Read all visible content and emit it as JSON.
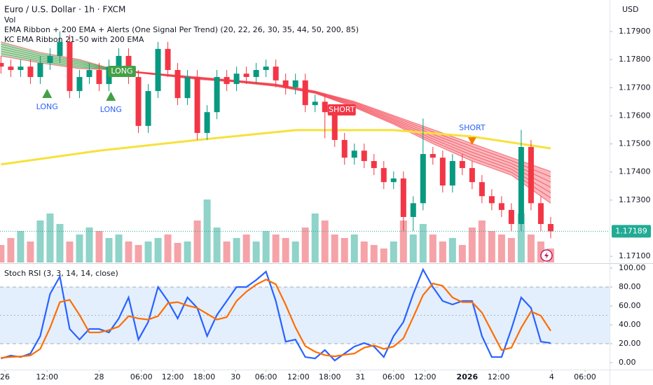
{
  "chart_data": [
    {
      "type": "candlestick",
      "title": "Euro / U.S. Dollar · 1h · FXCM",
      "indicator_labels": [
        "Vol",
        "EMA Ribbon + 200 EMA + Alerts (One Signal Per Trend) (20, 22, 26, 30, 35, 44, 50, 200, 85)",
        "KC EMA Ribbon 21–50 with 200 EMA"
      ],
      "currency": "USD",
      "xlim": [
        -0.1,
        62
      ],
      "xticks": [
        {
          "value": 0.4,
          "label": "26"
        },
        {
          "value": 4.7,
          "label": "12:00"
        },
        {
          "value": 10.0,
          "label": "28"
        },
        {
          "value": 14.3,
          "label": "06:00"
        },
        {
          "value": 17.5,
          "label": "12:00"
        },
        {
          "value": 20.7,
          "label": "18:00"
        },
        {
          "value": 23.9,
          "label": "30"
        },
        {
          "value": 27.0,
          "label": "06:00"
        },
        {
          "value": 30.3,
          "label": "12:00"
        },
        {
          "value": 33.5,
          "label": "18:00"
        },
        {
          "value": 36.6,
          "label": "31"
        },
        {
          "value": 40.0,
          "label": "06:00"
        },
        {
          "value": 43.2,
          "label": "12:00"
        },
        {
          "value": 47.5,
          "label": "2026"
        },
        {
          "value": 50.7,
          "label": "12:00"
        },
        {
          "value": 56.1,
          "label": "4"
        },
        {
          "value": 59.5,
          "label": "06:00"
        }
      ],
      "ylim": [
        1.17078,
        1.18012
      ],
      "yticks": [
        {
          "value": 1.179,
          "label": "1.17900"
        },
        {
          "value": 1.178,
          "label": "1.17800"
        },
        {
          "value": 1.177,
          "label": "1.17700"
        },
        {
          "value": 1.176,
          "label": "1.17600"
        },
        {
          "value": 1.175,
          "label": "1.17500"
        },
        {
          "value": 1.174,
          "label": "1.17400"
        },
        {
          "value": 1.173,
          "label": "1.17300"
        },
        {
          "value": 1.171,
          "label": "1.17100"
        }
      ],
      "up_color": "#089981",
      "down_color": "#f23645",
      "open": [
        1.17788,
        1.17775,
        1.17763,
        1.17775,
        1.17738,
        1.17788,
        1.17813,
        1.17863,
        1.17688,
        1.17738,
        1.17763,
        1.17713,
        1.17775,
        1.17813,
        1.17738,
        1.17564,
        1.17688,
        1.17838,
        1.17763,
        1.17663,
        1.17738,
        1.17539,
        1.17613,
        1.17738,
        1.17713,
        1.1775,
        1.17738,
        1.17763,
        1.17775,
        1.17726,
        1.17701,
        1.17726,
        1.17638,
        1.1765,
        1.17613,
        1.17514,
        1.17451,
        1.17476,
        1.17439,
        1.17414,
        1.17364,
        1.17377,
        1.1724,
        1.17289,
        1.17464,
        1.17451,
        1.17352,
        1.17439,
        1.17414,
        1.17364,
        1.17314,
        1.17289,
        1.17265,
        1.17215,
        1.17489,
        1.17289,
        1.17215
      ],
      "high": [
        1.17813,
        1.178,
        1.178,
        1.178,
        1.17813,
        1.1784,
        1.179,
        1.17888,
        1.17763,
        1.17788,
        1.17788,
        1.178,
        1.1784,
        1.1784,
        1.17763,
        1.17713,
        1.17863,
        1.17863,
        1.17788,
        1.17763,
        1.17763,
        1.17638,
        1.17763,
        1.17763,
        1.17775,
        1.17775,
        1.17788,
        1.178,
        1.178,
        1.1775,
        1.1775,
        1.1775,
        1.17675,
        1.17675,
        1.17638,
        1.17539,
        1.17501,
        1.17501,
        1.17464,
        1.17439,
        1.17402,
        1.17402,
        1.17314,
        1.1759,
        1.17489,
        1.17476,
        1.17464,
        1.17464,
        1.17439,
        1.17389,
        1.17339,
        1.17314,
        1.17289,
        1.1755,
        1.17514,
        1.17314,
        1.1724
      ],
      "low": [
        1.1775,
        1.17738,
        1.17738,
        1.17713,
        1.17713,
        1.17763,
        1.17788,
        1.17663,
        1.17663,
        1.17713,
        1.17688,
        1.17688,
        1.1775,
        1.17713,
        1.17539,
        1.17539,
        1.17663,
        1.17738,
        1.17638,
        1.17638,
        1.17514,
        1.17514,
        1.17588,
        1.17688,
        1.17688,
        1.17713,
        1.17713,
        1.17738,
        1.17701,
        1.17676,
        1.17676,
        1.17613,
        1.17613,
        1.1752,
        1.17489,
        1.17426,
        1.17426,
        1.17414,
        1.17389,
        1.17339,
        1.17339,
        1.1719,
        1.1719,
        1.17264,
        1.17426,
        1.17327,
        1.17327,
        1.17389,
        1.17339,
        1.17289,
        1.17264,
        1.1724,
        1.1719,
        1.1719,
        1.17264,
        1.1719,
        1.17164
      ],
      "close": [
        1.17775,
        1.17763,
        1.17775,
        1.17738,
        1.17788,
        1.17813,
        1.17863,
        1.17688,
        1.17738,
        1.17763,
        1.17713,
        1.17775,
        1.17813,
        1.17738,
        1.17564,
        1.17688,
        1.17838,
        1.17763,
        1.17663,
        1.17738,
        1.17539,
        1.17613,
        1.17738,
        1.17713,
        1.1775,
        1.17738,
        1.17763,
        1.17775,
        1.17726,
        1.17701,
        1.17726,
        1.17638,
        1.1765,
        1.17613,
        1.17514,
        1.17451,
        1.17476,
        1.17439,
        1.17414,
        1.17364,
        1.17377,
        1.1724,
        1.17289,
        1.17464,
        1.17451,
        1.17352,
        1.17439,
        1.17414,
        1.17364,
        1.17314,
        1.17289,
        1.17265,
        1.17215,
        1.17489,
        1.17289,
        1.17215,
        1.17189
      ],
      "volume": {
        "ylim": [
          0,
          100
        ],
        "up_color": "#8fd3c9",
        "down_color": "#f5a3a8",
        "values": [
          25,
          35,
          45,
          30,
          60,
          70,
          55,
          30,
          40,
          50,
          45,
          35,
          40,
          30,
          25,
          30,
          35,
          40,
          28,
          30,
          60,
          90,
          50,
          30,
          35,
          40,
          30,
          45,
          40,
          35,
          30,
          50,
          70,
          60,
          40,
          35,
          40,
          30,
          25,
          20,
          30,
          60,
          40,
          55,
          40,
          30,
          35,
          25,
          50,
          60,
          45,
          40,
          35,
          70,
          40,
          30,
          20
        ]
      },
      "ema200": {
        "color": "#f7e13b",
        "x": [
          0,
          10,
          20,
          30,
          40,
          48,
          56
        ],
        "values": [
          1.17427,
          1.17476,
          1.17514,
          1.17549,
          1.17549,
          1.17526,
          1.17484
        ]
      },
      "ribbon": {
        "bull_color": "#43a047",
        "bear_color": "#f23645",
        "x": [
          0,
          4,
          8,
          12,
          16,
          20,
          24,
          28,
          32,
          36,
          40,
          44,
          48,
          52,
          56
        ],
        "fast": [
          1.17863,
          1.17825,
          1.178,
          1.1776,
          1.17745,
          1.1773,
          1.1772,
          1.17705,
          1.1768,
          1.1763,
          1.1757,
          1.17501,
          1.17439,
          1.17389,
          1.17289
        ],
        "slow": [
          1.17813,
          1.17788,
          1.17768,
          1.17763,
          1.1775,
          1.17738,
          1.17726,
          1.17713,
          1.17688,
          1.17651,
          1.17601,
          1.17551,
          1.17501,
          1.17451,
          1.17402
        ]
      },
      "signals": [
        {
          "label": "LONG",
          "kind": "long-text",
          "x": 4.7,
          "price": 1.17631
        },
        {
          "label": "LONG",
          "kind": "long-text",
          "x": 11.2,
          "price": 1.17621
        },
        {
          "label": "LONG",
          "kind": "long-box",
          "x": 11.6,
          "price": 1.17758
        },
        {
          "label": "SHORT",
          "kind": "short-box",
          "x": 34,
          "price": 1.17621
        },
        {
          "label": "SHORT",
          "kind": "short-text",
          "x": 48,
          "price": 1.17556
        }
      ],
      "last_price": 1.17189,
      "last_price_color": "#22ab94"
    },
    {
      "type": "line",
      "title": "Stoch RSI (3, 3, 14, 14, close)",
      "ylim": [
        -7.4,
        103.7
      ],
      "yticks": [
        {
          "value": 100,
          "label": "100.00"
        },
        {
          "value": 80,
          "label": "80.00"
        },
        {
          "value": 60,
          "label": "60.00"
        },
        {
          "value": 40,
          "label": "40.00"
        },
        {
          "value": 20,
          "label": "20.00"
        },
        {
          "value": 0,
          "label": "0.00"
        }
      ],
      "band": [
        20,
        80
      ],
      "band_color": "#e3effd",
      "series": [
        {
          "color": "#2962ff",
          "values": [
            4.4,
            7.4,
            5.9,
            9.6,
            28.1,
            72.6,
            91.1,
            35.6,
            24.4,
            35.6,
            35.6,
            31.9,
            46.7,
            68.9,
            24.4,
            43.0,
            80.0,
            65.2,
            46.7,
            68.9,
            57.8,
            28.1,
            50.4,
            65.2,
            80.0,
            80.0,
            87.4,
            96.3,
            65.2,
            22.2,
            24.4,
            5.9,
            4.4,
            13.3,
            2.2,
            9.6,
            17.0,
            20.7,
            17.0,
            5.9,
            28.1,
            43.0,
            72.6,
            98.5,
            80.0,
            65.2,
            61.5,
            65.2,
            65.2,
            28.1,
            5.9,
            5.9,
            35.6,
            68.9,
            57.8,
            22.2,
            20.7
          ]
        },
        {
          "color": "#ff6d00",
          "values": [
            5.0,
            6.0,
            6.5,
            7.6,
            14.5,
            36.8,
            64.0,
            66.4,
            50.4,
            31.9,
            31.9,
            34.4,
            38.1,
            49.2,
            46.7,
            45.5,
            49.2,
            62.8,
            64.0,
            60.3,
            57.8,
            51.6,
            45.5,
            48.1,
            65.2,
            75.0,
            82.5,
            87.9,
            82.9,
            61.2,
            37.2,
            17.5,
            11.5,
            7.9,
            6.6,
            8.4,
            9.6,
            15.8,
            18.2,
            14.5,
            17.0,
            25.7,
            48.1,
            71.4,
            83.7,
            81.2,
            68.9,
            64.0,
            64.0,
            52.9,
            33.1,
            13.3,
            15.8,
            36.8,
            54.1,
            49.6,
            33.6
          ]
        }
      ]
    }
  ]
}
